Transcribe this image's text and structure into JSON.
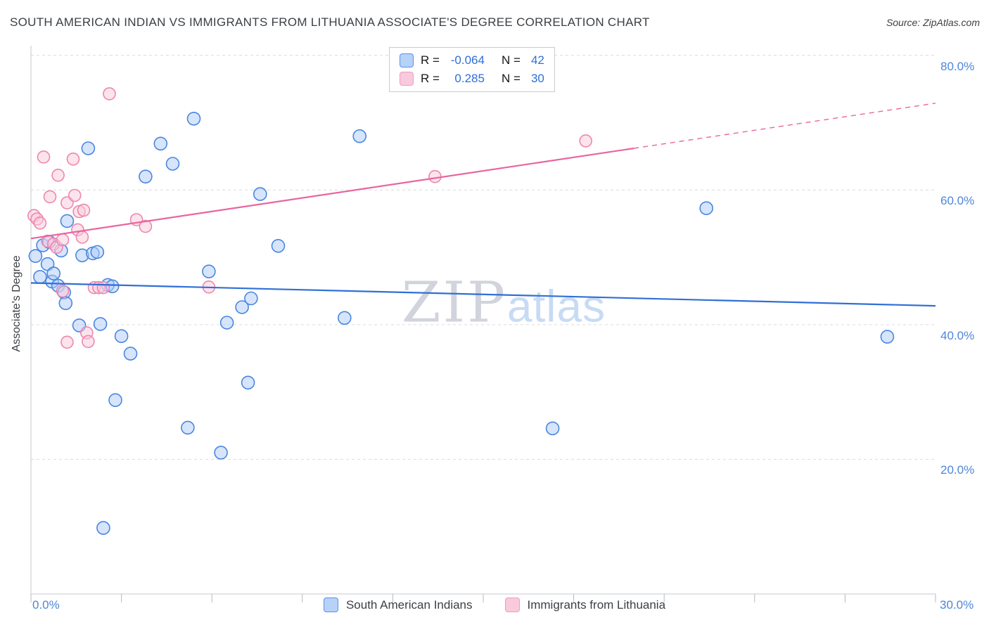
{
  "watermark": {
    "zip": "ZIP",
    "atlas": "atlas"
  },
  "chart_data": {
    "type": "scatter",
    "title": "SOUTH AMERICAN INDIAN VS IMMIGRANTS FROM LITHUANIA ASSOCIATE'S DEGREE CORRELATION CHART",
    "source": "Source: ZipAtlas.com",
    "xlabel": "",
    "ylabel": "Associate's Degree",
    "x_axis": {
      "min_percent": 0,
      "max_percent": 30,
      "left_label": "0.0%",
      "right_label": "30.0%",
      "tick_step_percent": 3
    },
    "y_axis": {
      "min_percent": 0,
      "max_percent": 81.4,
      "gridlines_percent": [
        20,
        40,
        60,
        80
      ]
    },
    "y_ticks": [
      {
        "pct": 80,
        "label": "80.0%"
      },
      {
        "pct": 60,
        "label": "60.0%"
      },
      {
        "pct": 40,
        "label": "40.0%"
      },
      {
        "pct": 20,
        "label": "20.0%"
      }
    ],
    "grid": "horizontal-dashed",
    "legend_position": "top-center",
    "series": [
      {
        "name": "South American Indians",
        "r_label": "R =",
        "r_value": "-0.064",
        "n_label": "N =",
        "n_value": "42",
        "R": -0.064,
        "N": 42,
        "color_fill": "#AECBFA",
        "color_stroke": "#4A86E0",
        "points_percent": [
          [
            0.15,
            50.2
          ],
          [
            0.3,
            47.1
          ],
          [
            0.4,
            51.8
          ],
          [
            0.55,
            49.0
          ],
          [
            0.6,
            52.3
          ],
          [
            0.7,
            46.4
          ],
          [
            0.75,
            47.6
          ],
          [
            0.9,
            45.8
          ],
          [
            1.0,
            51.0
          ],
          [
            1.1,
            44.8
          ],
          [
            1.15,
            43.2
          ],
          [
            1.2,
            55.4
          ],
          [
            1.6,
            39.9
          ],
          [
            1.7,
            50.3
          ],
          [
            1.9,
            66.2
          ],
          [
            2.05,
            50.6
          ],
          [
            2.2,
            50.8
          ],
          [
            2.3,
            40.1
          ],
          [
            2.4,
            9.8
          ],
          [
            2.55,
            45.9
          ],
          [
            2.7,
            45.7
          ],
          [
            2.8,
            28.8
          ],
          [
            3.0,
            38.3
          ],
          [
            3.3,
            35.7
          ],
          [
            3.8,
            62.0
          ],
          [
            4.3,
            66.9
          ],
          [
            4.7,
            63.9
          ],
          [
            5.2,
            24.7
          ],
          [
            5.4,
            70.6
          ],
          [
            5.9,
            47.9
          ],
          [
            6.3,
            21.0
          ],
          [
            6.5,
            40.3
          ],
          [
            7.0,
            42.6
          ],
          [
            7.2,
            31.4
          ],
          [
            7.3,
            43.9
          ],
          [
            7.6,
            59.4
          ],
          [
            8.2,
            51.7
          ],
          [
            10.4,
            41.0
          ],
          [
            10.9,
            68.0
          ],
          [
            17.3,
            24.6
          ],
          [
            22.4,
            57.3
          ],
          [
            28.4,
            38.2
          ]
        ]
      },
      {
        "name": "Immigrants from Lithuania",
        "r_label": "R =",
        "r_value": "0.285",
        "n_label": "N =",
        "n_value": "30",
        "R": 0.285,
        "N": 30,
        "color_fill": "#F9C9DB",
        "color_stroke": "#EF86AE",
        "points_percent": [
          [
            0.1,
            56.2
          ],
          [
            0.2,
            55.7
          ],
          [
            0.3,
            55.1
          ],
          [
            0.42,
            64.9
          ],
          [
            0.55,
            52.4
          ],
          [
            0.63,
            59.0
          ],
          [
            0.75,
            52.0
          ],
          [
            0.85,
            51.5
          ],
          [
            0.9,
            62.2
          ],
          [
            1.05,
            52.6
          ],
          [
            1.05,
            45.0
          ],
          [
            1.2,
            58.1
          ],
          [
            1.2,
            37.4
          ],
          [
            1.4,
            64.6
          ],
          [
            1.45,
            59.2
          ],
          [
            1.55,
            54.1
          ],
          [
            1.6,
            56.8
          ],
          [
            1.7,
            53.0
          ],
          [
            1.75,
            57.0
          ],
          [
            1.85,
            38.8
          ],
          [
            1.9,
            37.5
          ],
          [
            2.1,
            45.5
          ],
          [
            2.25,
            45.5
          ],
          [
            2.4,
            45.5
          ],
          [
            2.6,
            74.3
          ],
          [
            3.5,
            55.6
          ],
          [
            3.8,
            54.6
          ],
          [
            5.9,
            45.6
          ],
          [
            13.4,
            62.0
          ],
          [
            18.4,
            67.3
          ]
        ]
      }
    ],
    "trend_lines": [
      {
        "series": "South American Indians",
        "color": "#2F6FD8",
        "style": "solid",
        "start": [
          0,
          46.2
        ],
        "end": [
          30,
          42.8
        ]
      },
      {
        "series": "Immigrants from Lithuania",
        "color": "#E9659E",
        "style": "solid",
        "start": [
          0,
          52.8
        ],
        "end": [
          20,
          66.2
        ]
      },
      {
        "series": "Immigrants from Lithuania",
        "color": "#E9659E",
        "style": "dashed",
        "start": [
          20,
          66.2
        ],
        "end": [
          30,
          72.9
        ]
      }
    ]
  }
}
